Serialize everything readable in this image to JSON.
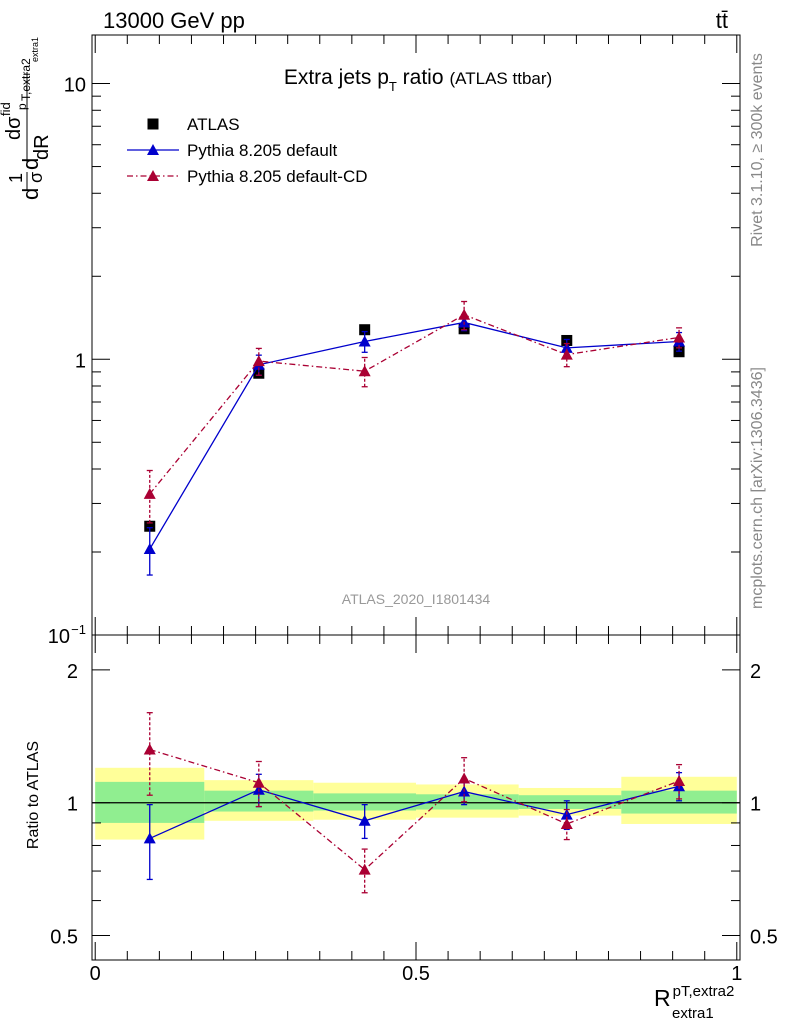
{
  "header": {
    "energy_label": "13000 GeV pp",
    "process_label": "tt̄"
  },
  "side_labels": {
    "rivet": "Rivet 3.1.10, ≥ 300k events",
    "mcplots": "mcplots.cern.ch [arXiv:1306.3436]"
  },
  "watermark": "ATLAS_2020_I1801434",
  "colors": {
    "atlas": "#000000",
    "default": "#0000cc",
    "default_cd": "#aa0033",
    "band_inner": "#90ee90",
    "band_outer": "#ffff99"
  },
  "chart_data": [
    {
      "panel": "main",
      "type": "line",
      "title_main": "Extra jets p",
      "title_sub": "T",
      "title_tail": " ratio",
      "title_small": "(ATLAS ttbar)",
      "ylabel_parts": [
        "d",
        "1",
        "σ",
        "d",
        "dσ",
        "fid",
        "p",
        "T,extra2",
        "extra1",
        "dR"
      ],
      "yscale": "log",
      "ylim": [
        0.1,
        15
      ],
      "xlim": [
        -0.005,
        1.005
      ],
      "yticks": [
        {
          "value": 10,
          "label": "10"
        },
        {
          "value": 1,
          "label": "1"
        },
        {
          "value": 0.1,
          "label": "10",
          "exp": "−1"
        }
      ],
      "legend": [
        {
          "key": "atlas",
          "label": "ATLAS",
          "marker": "square"
        },
        {
          "key": "default",
          "label": "Pythia 8.205 default",
          "marker": "triangle"
        },
        {
          "key": "default_cd",
          "label": "Pythia 8.205 default-CD",
          "marker": "triangle"
        }
      ],
      "x": [
        0.085,
        0.255,
        0.42,
        0.575,
        0.735,
        0.91
      ],
      "xedges": [
        0,
        0.17,
        0.34,
        0.5,
        0.66,
        0.82,
        1.0
      ],
      "series": [
        {
          "key": "atlas",
          "name": "ATLAS",
          "values": [
            0.248,
            0.89,
            1.28,
            1.29,
            1.17,
            1.065
          ],
          "errors": [
            0,
            0,
            0,
            0,
            0,
            0
          ]
        },
        {
          "key": "default",
          "name": "Pythia 8.205 default",
          "values": [
            0.205,
            0.955,
            1.16,
            1.36,
            1.1,
            1.16
          ],
          "errors": [
            0.04,
            0.08,
            0.1,
            0.09,
            0.08,
            0.09
          ]
        },
        {
          "key": "default_cd",
          "name": "Pythia 8.205 default-CD",
          "values": [
            0.325,
            0.985,
            0.905,
            1.45,
            1.04,
            1.2
          ],
          "errors": [
            0.07,
            0.11,
            0.11,
            0.17,
            0.1,
            0.1
          ]
        }
      ]
    },
    {
      "panel": "ratio",
      "type": "line",
      "ylabel": "Ratio to ATLAS",
      "xlabel_base": "R",
      "xlabel_sup": "pT,extra2",
      "xlabel_sub": "extra1",
      "yscale": "log",
      "ylim": [
        0.44,
        2.4
      ],
      "xticks": [
        {
          "value": 0,
          "label": "0"
        },
        {
          "value": 0.5,
          "label": "0.5"
        },
        {
          "value": 1,
          "label": "1"
        }
      ],
      "yticks": [
        {
          "value": 0.5,
          "label": "0.5"
        },
        {
          "value": 1,
          "label": "1"
        },
        {
          "value": 2,
          "label": "2"
        }
      ],
      "bands": [
        {
          "x0": 0,
          "x1": 0.17,
          "inner": [
            0.9,
            1.115
          ],
          "outer": [
            0.825,
            1.2
          ]
        },
        {
          "x0": 0.17,
          "x1": 0.34,
          "inner": [
            0.955,
            1.065
          ],
          "outer": [
            0.91,
            1.125
          ]
        },
        {
          "x0": 0.34,
          "x1": 0.5,
          "inner": [
            0.96,
            1.05
          ],
          "outer": [
            0.915,
            1.11
          ]
        },
        {
          "x0": 0.5,
          "x1": 0.66,
          "inner": [
            0.965,
            1.045
          ],
          "outer": [
            0.925,
            1.1
          ]
        },
        {
          "x0": 0.66,
          "x1": 0.82,
          "inner": [
            0.968,
            1.04
          ],
          "outer": [
            0.935,
            1.08
          ]
        },
        {
          "x0": 0.82,
          "x1": 1.0,
          "inner": [
            0.945,
            1.065
          ],
          "outer": [
            0.895,
            1.145
          ]
        }
      ],
      "series": [
        {
          "key": "default",
          "name": "Pythia 8.205 default",
          "values": [
            0.83,
            1.07,
            0.91,
            1.06,
            0.94,
            1.09
          ],
          "errors": [
            0.16,
            0.09,
            0.08,
            0.07,
            0.07,
            0.08
          ]
        },
        {
          "key": "default_cd",
          "name": "Pythia 8.205 default-CD",
          "values": [
            1.32,
            1.11,
            0.705,
            1.135,
            0.895,
            1.12
          ],
          "errors": [
            0.28,
            0.13,
            0.08,
            0.13,
            0.07,
            0.1
          ]
        }
      ]
    }
  ]
}
